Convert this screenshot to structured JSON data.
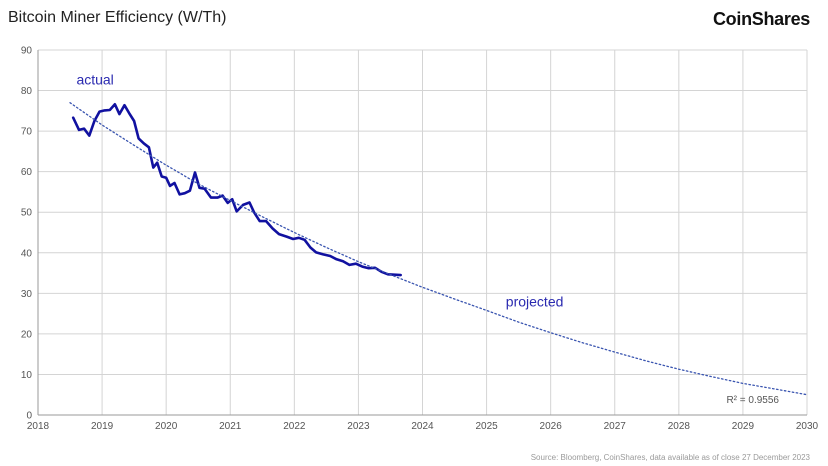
{
  "header": {
    "title": "Bitcoin Miner Efficiency (W/Th)",
    "brand": "CoinShares"
  },
  "footer": {
    "source": "Source: Bloomberg, CoinShares, data available as of close 27 December 2023"
  },
  "chart_data": {
    "type": "line",
    "title": "Bitcoin Miner Efficiency (W/Th)",
    "xlim": [
      2018,
      2030
    ],
    "ylim": [
      0,
      90
    ],
    "x_ticks": [
      "2018",
      "2019",
      "2020",
      "2021",
      "2022",
      "2023",
      "2024",
      "2025",
      "2026",
      "2027",
      "2028",
      "2029",
      "2030"
    ],
    "y_ticks": [
      "0",
      "10",
      "20",
      "30",
      "40",
      "50",
      "60",
      "70",
      "80",
      "90"
    ],
    "grid": true,
    "colors": {
      "actual": "#1111a0",
      "projected": "#3a55b0",
      "grid": "#d4d4d4"
    },
    "series": [
      {
        "name": "actual",
        "style": "solid",
        "points": [
          [
            2018.55,
            73.3
          ],
          [
            2018.64,
            70.3
          ],
          [
            2018.72,
            70.6
          ],
          [
            2018.8,
            68.9
          ],
          [
            2018.88,
            72.5
          ],
          [
            2018.96,
            74.8
          ],
          [
            2019.04,
            75.1
          ],
          [
            2019.12,
            75.2
          ],
          [
            2019.2,
            76.6
          ],
          [
            2019.27,
            74.2
          ],
          [
            2019.35,
            76.4
          ],
          [
            2019.42,
            74.5
          ],
          [
            2019.5,
            72.5
          ],
          [
            2019.57,
            68.2
          ],
          [
            2019.65,
            67.0
          ],
          [
            2019.73,
            66.0
          ],
          [
            2019.8,
            61.0
          ],
          [
            2019.86,
            62.2
          ],
          [
            2019.93,
            58.8
          ],
          [
            2020.0,
            58.5
          ],
          [
            2020.06,
            56.5
          ],
          [
            2020.13,
            57.2
          ],
          [
            2020.21,
            54.4
          ],
          [
            2020.29,
            54.7
          ],
          [
            2020.37,
            55.3
          ],
          [
            2020.45,
            59.8
          ],
          [
            2020.52,
            56.0
          ],
          [
            2020.6,
            55.8
          ],
          [
            2020.7,
            53.6
          ],
          [
            2020.8,
            53.6
          ],
          [
            2020.88,
            54.1
          ],
          [
            2020.96,
            52.3
          ],
          [
            2021.03,
            53.2
          ],
          [
            2021.1,
            50.2
          ],
          [
            2021.2,
            51.8
          ],
          [
            2021.3,
            52.4
          ],
          [
            2021.37,
            50.0
          ],
          [
            2021.46,
            47.8
          ],
          [
            2021.56,
            47.8
          ],
          [
            2021.66,
            46.0
          ],
          [
            2021.76,
            44.6
          ],
          [
            2021.88,
            44.0
          ],
          [
            2021.98,
            43.4
          ],
          [
            2022.07,
            43.7
          ],
          [
            2022.16,
            43.2
          ],
          [
            2022.25,
            41.3
          ],
          [
            2022.34,
            40.1
          ],
          [
            2022.45,
            39.6
          ],
          [
            2022.56,
            39.2
          ],
          [
            2022.66,
            38.4
          ],
          [
            2022.76,
            37.9
          ],
          [
            2022.86,
            37.0
          ],
          [
            2022.96,
            37.3
          ],
          [
            2023.06,
            36.6
          ],
          [
            2023.16,
            36.2
          ],
          [
            2023.26,
            36.3
          ],
          [
            2023.36,
            35.3
          ],
          [
            2023.46,
            34.7
          ],
          [
            2023.56,
            34.6
          ],
          [
            2023.66,
            34.5
          ]
        ]
      },
      {
        "name": "projected",
        "style": "dotted",
        "points": [
          [
            2018.5,
            77.0
          ],
          [
            2019.0,
            71.5
          ],
          [
            2019.5,
            66.5
          ],
          [
            2020.0,
            61.6
          ],
          [
            2020.5,
            57.0
          ],
          [
            2021.0,
            52.9
          ],
          [
            2021.5,
            48.9
          ],
          [
            2022.0,
            45.0
          ],
          [
            2022.5,
            41.3
          ],
          [
            2023.0,
            37.8
          ],
          [
            2023.5,
            34.6
          ],
          [
            2024.0,
            31.5
          ],
          [
            2024.5,
            28.6
          ],
          [
            2025.0,
            25.8
          ],
          [
            2025.5,
            22.9
          ],
          [
            2026.0,
            20.3
          ],
          [
            2026.5,
            17.8
          ],
          [
            2027.0,
            15.5
          ],
          [
            2027.5,
            13.3
          ],
          [
            2028.0,
            11.3
          ],
          [
            2028.5,
            9.5
          ],
          [
            2029.0,
            7.8
          ],
          [
            2029.5,
            6.4
          ],
          [
            2030.0,
            5.0
          ]
        ]
      }
    ],
    "annotations": [
      {
        "text": "actual",
        "x": 2018.6,
        "y": 81.5
      },
      {
        "text": "projected",
        "x": 2025.3,
        "y": 26.8
      }
    ],
    "r_squared_label": "R² = 0.9556",
    "r_squared_position": "bottom-right"
  }
}
